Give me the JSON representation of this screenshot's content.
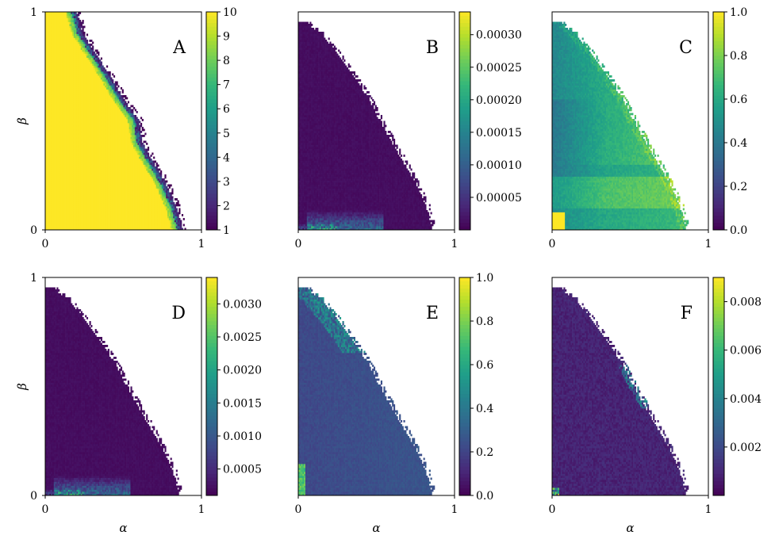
{
  "chart_data": [
    {
      "type": "heatmap",
      "panel": "A",
      "xlabel": "",
      "ylabel": "β",
      "x_ticks": [
        "0",
        "1"
      ],
      "y_ticks": [
        "0",
        "1"
      ],
      "xlim": [
        0,
        1
      ],
      "ylim": [
        0,
        1
      ],
      "colorbar": {
        "min": 1,
        "max": 10,
        "ticks": [
          "1",
          "2",
          "3",
          "4",
          "5",
          "6",
          "7",
          "8",
          "9",
          "10"
        ],
        "tick_values": [
          1,
          2,
          3,
          4,
          5,
          6,
          7,
          8,
          9,
          10
        ],
        "colormap": "viridis"
      },
      "boundary": {
        "alpha_at_beta": [
          [
            0,
            0.88
          ],
          [
            0.1,
            0.84
          ],
          [
            0.2,
            0.78
          ],
          [
            0.3,
            0.7
          ],
          [
            0.4,
            0.62
          ],
          [
            0.5,
            0.6
          ],
          [
            0.6,
            0.5
          ],
          [
            0.7,
            0.42
          ],
          [
            0.8,
            0.33
          ],
          [
            0.9,
            0.24
          ],
          [
            1.0,
            0.2
          ]
        ]
      },
      "pattern": "saturated"
    },
    {
      "type": "heatmap",
      "panel": "B",
      "xlabel": "",
      "ylabel": "",
      "x_ticks": [
        "0",
        "1"
      ],
      "y_ticks": [],
      "xlim": [
        0,
        1
      ],
      "ylim": [
        0,
        1
      ],
      "colorbar": {
        "min": 0,
        "max": 0.000335,
        "ticks": [
          "0.00005",
          "0.00010",
          "0.00015",
          "0.00020",
          "0.00025",
          "0.00030"
        ],
        "tick_values": [
          5e-05,
          0.0001,
          0.00015,
          0.0002,
          0.00025,
          0.0003
        ],
        "colormap": "viridis"
      },
      "boundary": {
        "alpha_at_beta": [
          [
            0,
            0.86
          ],
          [
            0.1,
            0.82
          ],
          [
            0.2,
            0.76
          ],
          [
            0.3,
            0.68
          ],
          [
            0.4,
            0.6
          ],
          [
            0.5,
            0.52
          ],
          [
            0.6,
            0.45
          ],
          [
            0.7,
            0.36
          ],
          [
            0.8,
            0.26
          ],
          [
            0.9,
            0.14
          ],
          [
            0.95,
            0.05
          ]
        ]
      },
      "pattern": "bottom_hotspot"
    },
    {
      "type": "heatmap",
      "panel": "C",
      "xlabel": "",
      "ylabel": "",
      "x_ticks": [
        "0",
        "1"
      ],
      "y_ticks": [],
      "xlim": [
        0,
        1
      ],
      "ylim": [
        0,
        1
      ],
      "colorbar": {
        "min": 0,
        "max": 1,
        "ticks": [
          "0.0",
          "0.2",
          "0.4",
          "0.6",
          "0.8",
          "1.0"
        ],
        "tick_values": [
          0,
          0.2,
          0.4,
          0.6,
          0.8,
          1.0
        ],
        "colormap": "viridis"
      },
      "boundary": {
        "alpha_at_beta": [
          [
            0,
            0.86
          ],
          [
            0.1,
            0.82
          ],
          [
            0.2,
            0.76
          ],
          [
            0.3,
            0.68
          ],
          [
            0.4,
            0.6
          ],
          [
            0.5,
            0.52
          ],
          [
            0.6,
            0.45
          ],
          [
            0.7,
            0.36
          ],
          [
            0.8,
            0.26
          ],
          [
            0.9,
            0.14
          ],
          [
            0.95,
            0.05
          ]
        ]
      },
      "pattern": "ratio_c"
    },
    {
      "type": "heatmap",
      "panel": "D",
      "xlabel": "α",
      "ylabel": "β",
      "x_ticks": [
        "0",
        "1"
      ],
      "y_ticks": [
        "0",
        "1"
      ],
      "xlim": [
        0,
        1
      ],
      "ylim": [
        0,
        1
      ],
      "colorbar": {
        "min": 0.0001,
        "max": 0.0034,
        "ticks": [
          "0.0005",
          "0.0010",
          "0.0015",
          "0.0020",
          "0.0025",
          "0.0030"
        ],
        "tick_values": [
          0.0005,
          0.001,
          0.0015,
          0.002,
          0.0025,
          0.003
        ],
        "colormap": "viridis"
      },
      "boundary": {
        "alpha_at_beta": [
          [
            0,
            0.86
          ],
          [
            0.1,
            0.82
          ],
          [
            0.2,
            0.76
          ],
          [
            0.3,
            0.68
          ],
          [
            0.4,
            0.6
          ],
          [
            0.5,
            0.52
          ],
          [
            0.6,
            0.45
          ],
          [
            0.7,
            0.36
          ],
          [
            0.8,
            0.26
          ],
          [
            0.9,
            0.14
          ],
          [
            0.95,
            0.05
          ]
        ]
      },
      "pattern": "bottom_hotspot"
    },
    {
      "type": "heatmap",
      "panel": "E",
      "xlabel": "α",
      "ylabel": "",
      "x_ticks": [
        "0",
        "1"
      ],
      "y_ticks": [],
      "xlim": [
        0,
        1
      ],
      "ylim": [
        0,
        1
      ],
      "colorbar": {
        "min": 0,
        "max": 1,
        "ticks": [
          "0.0",
          "0.2",
          "0.4",
          "0.6",
          "0.8",
          "1.0"
        ],
        "tick_values": [
          0,
          0.2,
          0.4,
          0.6,
          0.8,
          1.0
        ],
        "colormap": "viridis"
      },
      "boundary": {
        "alpha_at_beta": [
          [
            0,
            0.86
          ],
          [
            0.1,
            0.82
          ],
          [
            0.2,
            0.76
          ],
          [
            0.3,
            0.68
          ],
          [
            0.4,
            0.6
          ],
          [
            0.5,
            0.52
          ],
          [
            0.6,
            0.45
          ],
          [
            0.7,
            0.36
          ],
          [
            0.8,
            0.26
          ],
          [
            0.9,
            0.14
          ],
          [
            0.95,
            0.05
          ]
        ]
      },
      "pattern": "ratio_e"
    },
    {
      "type": "heatmap",
      "panel": "F",
      "xlabel": "α",
      "ylabel": "",
      "x_ticks": [
        "0",
        "1"
      ],
      "y_ticks": [],
      "xlim": [
        0,
        1
      ],
      "ylim": [
        0,
        1
      ],
      "colorbar": {
        "min": 0,
        "max": 0.009,
        "ticks": [
          "0.002",
          "0.004",
          "0.006",
          "0.008"
        ],
        "tick_values": [
          0.002,
          0.004,
          0.006,
          0.008
        ],
        "colormap": "viridis"
      },
      "boundary": {
        "alpha_at_beta": [
          [
            0,
            0.86
          ],
          [
            0.1,
            0.82
          ],
          [
            0.2,
            0.76
          ],
          [
            0.3,
            0.68
          ],
          [
            0.4,
            0.6
          ],
          [
            0.5,
            0.52
          ],
          [
            0.6,
            0.45
          ],
          [
            0.7,
            0.36
          ],
          [
            0.8,
            0.26
          ],
          [
            0.9,
            0.14
          ],
          [
            0.95,
            0.05
          ]
        ]
      },
      "pattern": "corner_hotspot"
    }
  ]
}
